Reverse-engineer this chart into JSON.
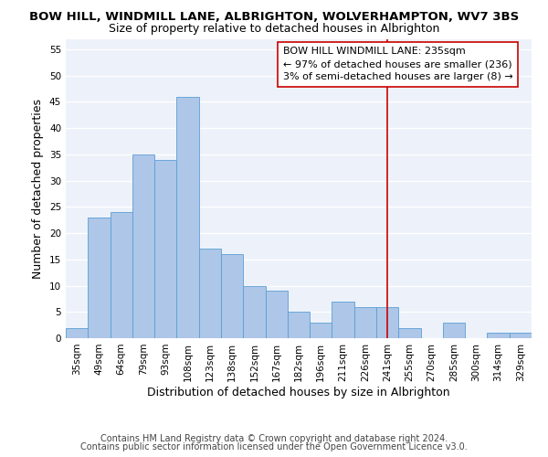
{
  "title": "BOW HILL, WINDMILL LANE, ALBRIGHTON, WOLVERHAMPTON, WV7 3BS",
  "subtitle": "Size of property relative to detached houses in Albrighton",
  "xlabel": "Distribution of detached houses by size in Albrighton",
  "ylabel": "Number of detached properties",
  "bar_labels": [
    "35sqm",
    "49sqm",
    "64sqm",
    "79sqm",
    "93sqm",
    "108sqm",
    "123sqm",
    "138sqm",
    "152sqm",
    "167sqm",
    "182sqm",
    "196sqm",
    "211sqm",
    "226sqm",
    "241sqm",
    "255sqm",
    "270sqm",
    "285sqm",
    "300sqm",
    "314sqm",
    "329sqm"
  ],
  "bar_values": [
    2,
    23,
    24,
    35,
    34,
    46,
    17,
    16,
    10,
    9,
    5,
    3,
    7,
    6,
    6,
    2,
    0,
    3,
    0,
    1,
    1
  ],
  "bar_color": "#aec6e8",
  "bar_edge_color": "#5a9fd4",
  "ylim": [
    0,
    57
  ],
  "yticks": [
    0,
    5,
    10,
    15,
    20,
    25,
    30,
    35,
    40,
    45,
    50,
    55
  ],
  "vline_x": 14,
  "vline_color": "#cc0000",
  "annotation_title": "BOW HILL WINDMILL LANE: 235sqm",
  "annotation_line1": "← 97% of detached houses are smaller (236)",
  "annotation_line2": "3% of semi-detached houses are larger (8) →",
  "footer1": "Contains HM Land Registry data © Crown copyright and database right 2024.",
  "footer2": "Contains public sector information licensed under the Open Government Licence v3.0.",
  "title_fontsize": 9.5,
  "subtitle_fontsize": 9,
  "axis_label_fontsize": 9,
  "tick_fontsize": 7.5,
  "footer_fontsize": 7,
  "annotation_fontsize": 8
}
